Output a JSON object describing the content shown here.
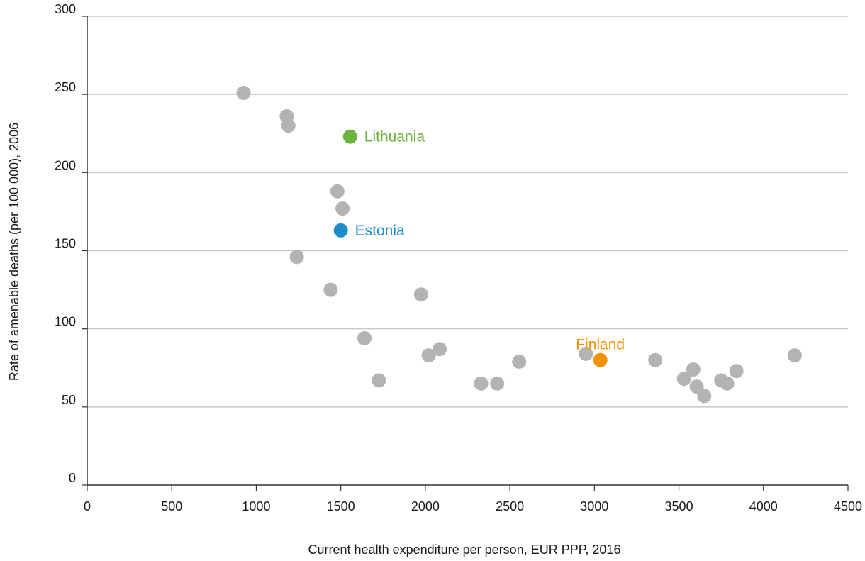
{
  "chart_data": {
    "type": "scatter",
    "xlabel": "Current health expenditure per person, EUR PPP, 2016",
    "ylabel": "Rate of amenable deaths (per 100 000), 2006",
    "xlim": [
      0,
      4500
    ],
    "ylim": [
      0,
      300
    ],
    "x_ticks": [
      "0",
      "500",
      "1000",
      "1500",
      "2000",
      "2500",
      "3000",
      "3500",
      "4000",
      "4500"
    ],
    "y_ticks": [
      "0",
      "50",
      "100",
      "150",
      "200",
      "250",
      "300"
    ],
    "grid": "horizontal",
    "colors": {
      "default": "#b3b3b3",
      "Lithuania": "#6cb33f",
      "Estonia": "#1b8ccc",
      "Finland": "#f39200",
      "grid": "#c8c8c8",
      "axis": "#333333"
    },
    "points": [
      {
        "x": 925,
        "y": 251
      },
      {
        "x": 1180,
        "y": 236
      },
      {
        "x": 1190,
        "y": 230
      },
      {
        "x": 1480,
        "y": 188
      },
      {
        "x": 1510,
        "y": 177
      },
      {
        "x": 1240,
        "y": 146
      },
      {
        "x": 1440,
        "y": 125
      },
      {
        "x": 1975,
        "y": 122
      },
      {
        "x": 1640,
        "y": 94
      },
      {
        "x": 2020,
        "y": 83
      },
      {
        "x": 2085,
        "y": 87
      },
      {
        "x": 1725,
        "y": 67
      },
      {
        "x": 2330,
        "y": 65
      },
      {
        "x": 2425,
        "y": 65
      },
      {
        "x": 2555,
        "y": 79
      },
      {
        "x": 2950,
        "y": 84
      },
      {
        "x": 3360,
        "y": 80
      },
      {
        "x": 3530,
        "y": 68
      },
      {
        "x": 3585,
        "y": 74
      },
      {
        "x": 3605,
        "y": 63
      },
      {
        "x": 3650,
        "y": 57
      },
      {
        "x": 3750,
        "y": 67
      },
      {
        "x": 3785,
        "y": 65
      },
      {
        "x": 3840,
        "y": 73
      },
      {
        "x": 4185,
        "y": 83
      },
      {
        "x": 1555,
        "y": 223,
        "label": "Lithuania",
        "label_position": "right"
      },
      {
        "x": 1500,
        "y": 163,
        "label": "Estonia",
        "label_position": "right"
      },
      {
        "x": 3035,
        "y": 80,
        "label": "Finland",
        "label_position": "above"
      }
    ]
  }
}
